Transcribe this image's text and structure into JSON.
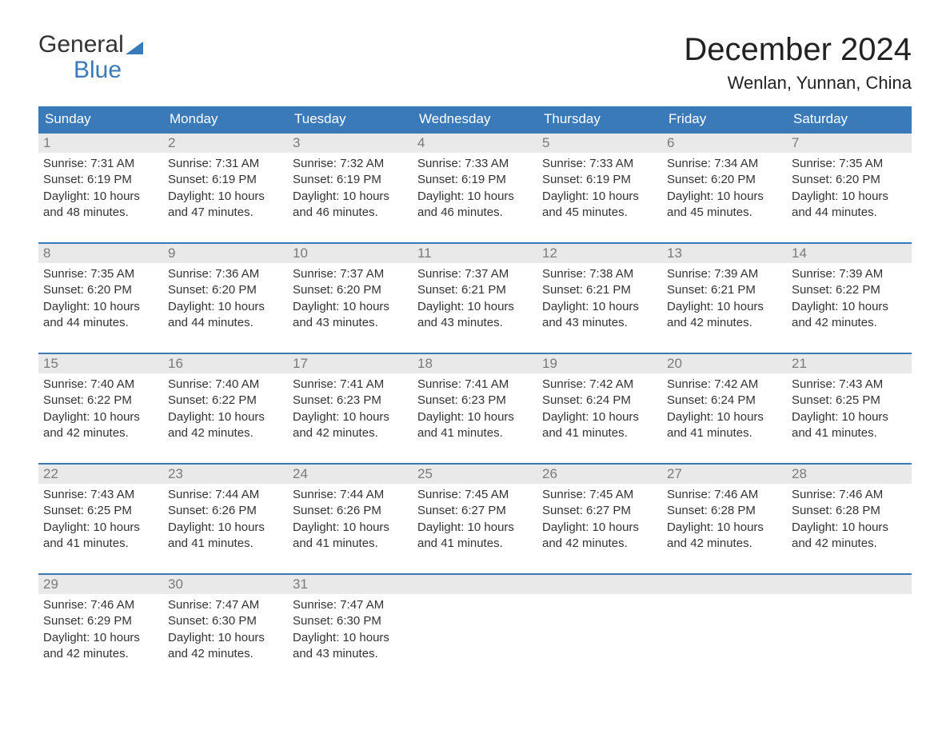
{
  "logo": {
    "line1": "General",
    "line2": "Blue"
  },
  "title": "December 2024",
  "location": "Wenlan, Yunnan, China",
  "colors": {
    "header_bg": "#3b7ab8",
    "header_text": "#ffffff",
    "daynum_bg": "#e9e9e9",
    "daynum_text": "#7a7a7a",
    "body_text": "#333333",
    "page_bg": "#ffffff",
    "accent": "#3b7ab8"
  },
  "typography": {
    "title_fontsize": 40,
    "location_fontsize": 22,
    "weekday_fontsize": 17,
    "daynum_fontsize": 17,
    "body_fontsize": 15,
    "font_family": "Arial"
  },
  "layout": {
    "columns": 7,
    "rows": 5,
    "week_separator_color": "#3b7ab8",
    "week_separator_width": 2
  },
  "weekdays": [
    "Sunday",
    "Monday",
    "Tuesday",
    "Wednesday",
    "Thursday",
    "Friday",
    "Saturday"
  ],
  "days": [
    {
      "num": "1",
      "sunrise": "Sunrise: 7:31 AM",
      "sunset": "Sunset: 6:19 PM",
      "daylight1": "Daylight: 10 hours",
      "daylight2": "and 48 minutes."
    },
    {
      "num": "2",
      "sunrise": "Sunrise: 7:31 AM",
      "sunset": "Sunset: 6:19 PM",
      "daylight1": "Daylight: 10 hours",
      "daylight2": "and 47 minutes."
    },
    {
      "num": "3",
      "sunrise": "Sunrise: 7:32 AM",
      "sunset": "Sunset: 6:19 PM",
      "daylight1": "Daylight: 10 hours",
      "daylight2": "and 46 minutes."
    },
    {
      "num": "4",
      "sunrise": "Sunrise: 7:33 AM",
      "sunset": "Sunset: 6:19 PM",
      "daylight1": "Daylight: 10 hours",
      "daylight2": "and 46 minutes."
    },
    {
      "num": "5",
      "sunrise": "Sunrise: 7:33 AM",
      "sunset": "Sunset: 6:19 PM",
      "daylight1": "Daylight: 10 hours",
      "daylight2": "and 45 minutes."
    },
    {
      "num": "6",
      "sunrise": "Sunrise: 7:34 AM",
      "sunset": "Sunset: 6:20 PM",
      "daylight1": "Daylight: 10 hours",
      "daylight2": "and 45 minutes."
    },
    {
      "num": "7",
      "sunrise": "Sunrise: 7:35 AM",
      "sunset": "Sunset: 6:20 PM",
      "daylight1": "Daylight: 10 hours",
      "daylight2": "and 44 minutes."
    },
    {
      "num": "8",
      "sunrise": "Sunrise: 7:35 AM",
      "sunset": "Sunset: 6:20 PM",
      "daylight1": "Daylight: 10 hours",
      "daylight2": "and 44 minutes."
    },
    {
      "num": "9",
      "sunrise": "Sunrise: 7:36 AM",
      "sunset": "Sunset: 6:20 PM",
      "daylight1": "Daylight: 10 hours",
      "daylight2": "and 44 minutes."
    },
    {
      "num": "10",
      "sunrise": "Sunrise: 7:37 AM",
      "sunset": "Sunset: 6:20 PM",
      "daylight1": "Daylight: 10 hours",
      "daylight2": "and 43 minutes."
    },
    {
      "num": "11",
      "sunrise": "Sunrise: 7:37 AM",
      "sunset": "Sunset: 6:21 PM",
      "daylight1": "Daylight: 10 hours",
      "daylight2": "and 43 minutes."
    },
    {
      "num": "12",
      "sunrise": "Sunrise: 7:38 AM",
      "sunset": "Sunset: 6:21 PM",
      "daylight1": "Daylight: 10 hours",
      "daylight2": "and 43 minutes."
    },
    {
      "num": "13",
      "sunrise": "Sunrise: 7:39 AM",
      "sunset": "Sunset: 6:21 PM",
      "daylight1": "Daylight: 10 hours",
      "daylight2": "and 42 minutes."
    },
    {
      "num": "14",
      "sunrise": "Sunrise: 7:39 AM",
      "sunset": "Sunset: 6:22 PM",
      "daylight1": "Daylight: 10 hours",
      "daylight2": "and 42 minutes."
    },
    {
      "num": "15",
      "sunrise": "Sunrise: 7:40 AM",
      "sunset": "Sunset: 6:22 PM",
      "daylight1": "Daylight: 10 hours",
      "daylight2": "and 42 minutes."
    },
    {
      "num": "16",
      "sunrise": "Sunrise: 7:40 AM",
      "sunset": "Sunset: 6:22 PM",
      "daylight1": "Daylight: 10 hours",
      "daylight2": "and 42 minutes."
    },
    {
      "num": "17",
      "sunrise": "Sunrise: 7:41 AM",
      "sunset": "Sunset: 6:23 PM",
      "daylight1": "Daylight: 10 hours",
      "daylight2": "and 42 minutes."
    },
    {
      "num": "18",
      "sunrise": "Sunrise: 7:41 AM",
      "sunset": "Sunset: 6:23 PM",
      "daylight1": "Daylight: 10 hours",
      "daylight2": "and 41 minutes."
    },
    {
      "num": "19",
      "sunrise": "Sunrise: 7:42 AM",
      "sunset": "Sunset: 6:24 PM",
      "daylight1": "Daylight: 10 hours",
      "daylight2": "and 41 minutes."
    },
    {
      "num": "20",
      "sunrise": "Sunrise: 7:42 AM",
      "sunset": "Sunset: 6:24 PM",
      "daylight1": "Daylight: 10 hours",
      "daylight2": "and 41 minutes."
    },
    {
      "num": "21",
      "sunrise": "Sunrise: 7:43 AM",
      "sunset": "Sunset: 6:25 PM",
      "daylight1": "Daylight: 10 hours",
      "daylight2": "and 41 minutes."
    },
    {
      "num": "22",
      "sunrise": "Sunrise: 7:43 AM",
      "sunset": "Sunset: 6:25 PM",
      "daylight1": "Daylight: 10 hours",
      "daylight2": "and 41 minutes."
    },
    {
      "num": "23",
      "sunrise": "Sunrise: 7:44 AM",
      "sunset": "Sunset: 6:26 PM",
      "daylight1": "Daylight: 10 hours",
      "daylight2": "and 41 minutes."
    },
    {
      "num": "24",
      "sunrise": "Sunrise: 7:44 AM",
      "sunset": "Sunset: 6:26 PM",
      "daylight1": "Daylight: 10 hours",
      "daylight2": "and 41 minutes."
    },
    {
      "num": "25",
      "sunrise": "Sunrise: 7:45 AM",
      "sunset": "Sunset: 6:27 PM",
      "daylight1": "Daylight: 10 hours",
      "daylight2": "and 41 minutes."
    },
    {
      "num": "26",
      "sunrise": "Sunrise: 7:45 AM",
      "sunset": "Sunset: 6:27 PM",
      "daylight1": "Daylight: 10 hours",
      "daylight2": "and 42 minutes."
    },
    {
      "num": "27",
      "sunrise": "Sunrise: 7:46 AM",
      "sunset": "Sunset: 6:28 PM",
      "daylight1": "Daylight: 10 hours",
      "daylight2": "and 42 minutes."
    },
    {
      "num": "28",
      "sunrise": "Sunrise: 7:46 AM",
      "sunset": "Sunset: 6:28 PM",
      "daylight1": "Daylight: 10 hours",
      "daylight2": "and 42 minutes."
    },
    {
      "num": "29",
      "sunrise": "Sunrise: 7:46 AM",
      "sunset": "Sunset: 6:29 PM",
      "daylight1": "Daylight: 10 hours",
      "daylight2": "and 42 minutes."
    },
    {
      "num": "30",
      "sunrise": "Sunrise: 7:47 AM",
      "sunset": "Sunset: 6:30 PM",
      "daylight1": "Daylight: 10 hours",
      "daylight2": "and 42 minutes."
    },
    {
      "num": "31",
      "sunrise": "Sunrise: 7:47 AM",
      "sunset": "Sunset: 6:30 PM",
      "daylight1": "Daylight: 10 hours",
      "daylight2": "and 43 minutes."
    }
  ],
  "trailing_empty": 4
}
